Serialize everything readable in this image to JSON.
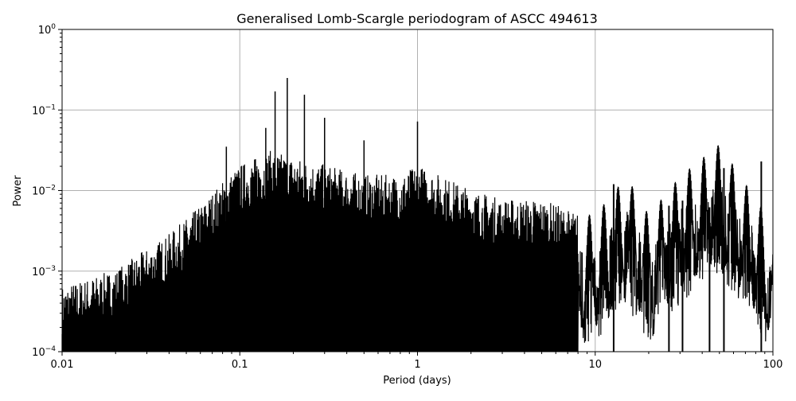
{
  "chart_data": {
    "type": "line",
    "title": "Generalised Lomb-Scargle periodogram of ASCC 494613",
    "xlabel": "Period (days)",
    "ylabel": "Power",
    "xscale": "log",
    "yscale": "log",
    "xlim": [
      0.01,
      100
    ],
    "ylim": [
      0.0001,
      1
    ],
    "x_ticks": [
      "0.01",
      "0.1",
      "1",
      "10",
      "100"
    ],
    "y_ticks": [
      "10^-4",
      "10^-3",
      "10^-2",
      "10^-1",
      "10^0"
    ],
    "grid": true,
    "line_color": "#000000",
    "grid_color": "#b0b0b0",
    "peaks": [
      {
        "period": 0.084,
        "power": 0.035
      },
      {
        "period": 0.14,
        "power": 0.06
      },
      {
        "period": 0.158,
        "power": 0.17
      },
      {
        "period": 0.185,
        "power": 0.25
      },
      {
        "period": 0.231,
        "power": 0.155
      },
      {
        "period": 0.3,
        "power": 0.08
      },
      {
        "period": 0.5,
        "power": 0.042
      },
      {
        "period": 1.0,
        "power": 0.072
      },
      {
        "period": 12.7,
        "power": 0.012
      },
      {
        "period": 26.0,
        "power": 0.0065
      },
      {
        "period": 31.0,
        "power": 0.0075
      },
      {
        "period": 44.0,
        "power": 0.0062
      },
      {
        "period": 53.0,
        "power": 0.019
      },
      {
        "period": 86.0,
        "power": 0.023
      }
    ],
    "envelope": {
      "period": [
        0.01,
        0.02,
        0.04,
        0.06,
        0.08,
        0.1,
        0.15,
        0.2,
        0.3,
        0.5,
        0.8,
        1.0,
        2.0,
        3.0,
        5.0,
        8.0,
        10.0,
        15.0,
        20.0,
        30.0,
        50.0,
        100.0
      ],
      "power": [
        0.00025,
        0.0004,
        0.0011,
        0.0025,
        0.005,
        0.008,
        0.012,
        0.01,
        0.008,
        0.006,
        0.006,
        0.008,
        0.004,
        0.003,
        0.003,
        0.002,
        0.002,
        0.006,
        0.002,
        0.006,
        0.015,
        0.0015
      ]
    }
  }
}
